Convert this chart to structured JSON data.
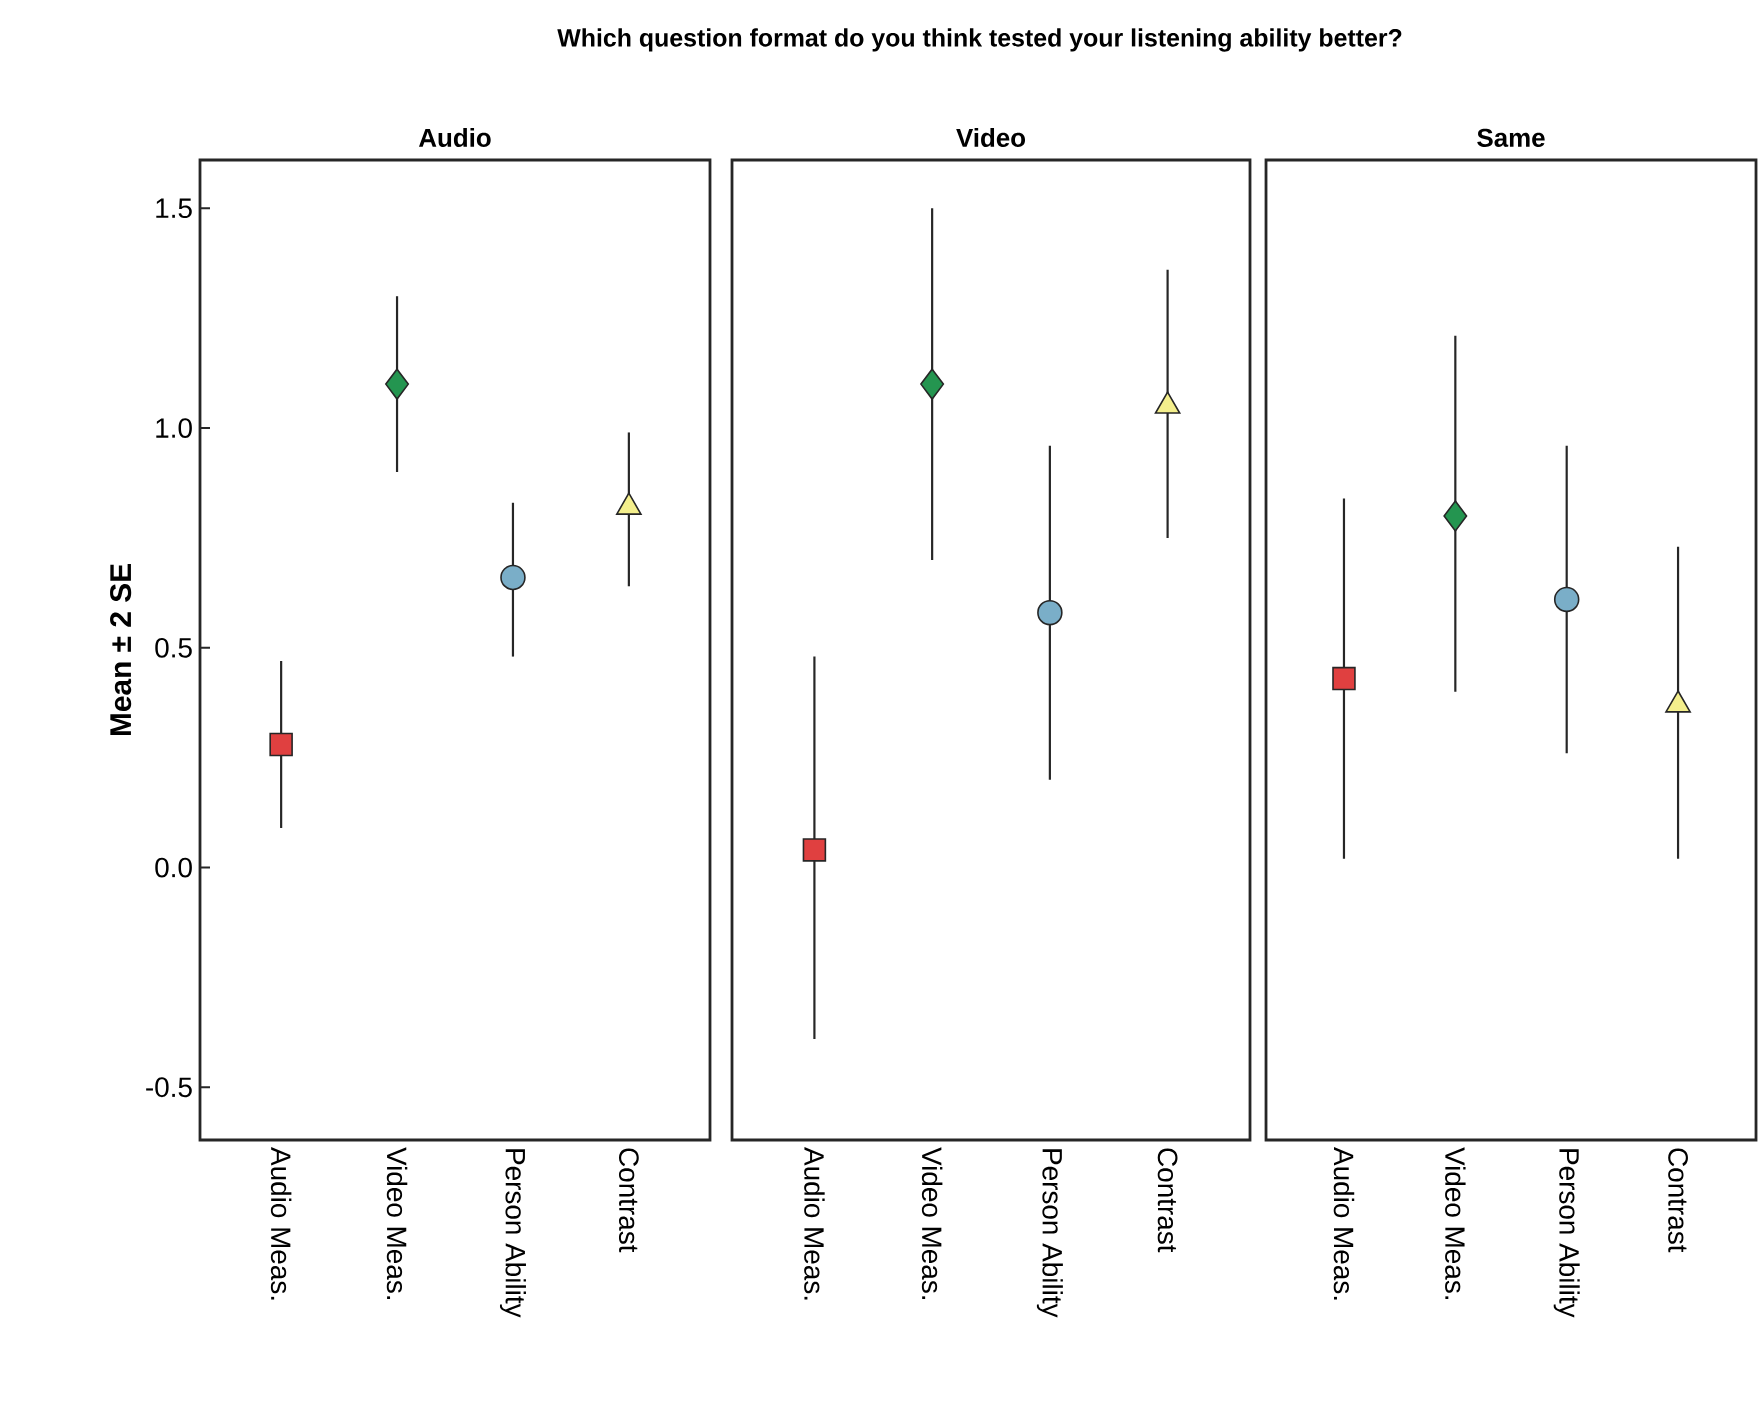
{
  "chart_data": [
    {
      "type": "scatter",
      "title": "Audio",
      "ylabel": "Mean ± 2 SE",
      "annotations": [
        "Which question format do you think tested your listening ability better?"
      ],
      "categories": [
        "Audio Meas.",
        "Video Meas.",
        "Person Ability",
        "Contrast"
      ],
      "series": [
        {
          "color": "#e04040",
          "marker": "square",
          "values": [
            0.28,
            null,
            null,
            null
          ],
          "errors": [
            [
              0.09,
              0.47
            ],
            null,
            null,
            null
          ]
        },
        {
          "color": "#249550",
          "marker": "diamond",
          "values": [
            null,
            1.1,
            null,
            null
          ],
          "errors": [
            null,
            [
              0.9,
              1.3
            ],
            null,
            null
          ]
        },
        {
          "color": "#7aaec8",
          "marker": "circle",
          "values": [
            null,
            null,
            0.66,
            null
          ],
          "errors": [
            null,
            null,
            [
              0.48,
              0.83
            ],
            null
          ]
        },
        {
          "color": "#f4ef8c",
          "marker": "triangle",
          "values": [
            null,
            null,
            null,
            0.82
          ],
          "errors": [
            null,
            null,
            null,
            [
              0.64,
              0.99
            ]
          ]
        }
      ],
      "ylim": [
        -0.62,
        1.61
      ],
      "yticks": [
        {
          "value": -0.5,
          "label": "-0.5"
        },
        {
          "value": 0,
          "label": "0.0"
        },
        {
          "value": 0.5,
          "label": "0.5"
        },
        {
          "value": 1,
          "label": "1.0"
        },
        {
          "value": 1.5,
          "label": "1.5"
        }
      ]
    },
    {
      "type": "scatter",
      "title": "Video",
      "tick_labels": "x",
      "categories": [
        "Audio Meas.",
        "Video Meas.",
        "Person Ability",
        "Contrast"
      ],
      "series": [
        {
          "color": "#e04040",
          "marker": "square",
          "values": [
            0.04,
            null,
            null,
            null
          ],
          "errors": [
            [
              -0.39,
              0.48
            ],
            null,
            null,
            null
          ]
        },
        {
          "color": "#249550",
          "marker": "diamond",
          "values": [
            null,
            1.1,
            null,
            null
          ],
          "errors": [
            null,
            [
              0.7,
              1.5
            ],
            null,
            null
          ]
        },
        {
          "color": "#7aaec8",
          "marker": "circle",
          "values": [
            null,
            null,
            0.58,
            null
          ],
          "errors": [
            null,
            null,
            [
              0.2,
              0.96
            ],
            null
          ]
        },
        {
          "color": "#f4ef8c",
          "marker": "triangle",
          "values": [
            null,
            null,
            null,
            1.05
          ],
          "errors": [
            null,
            null,
            null,
            [
              0.75,
              1.36
            ]
          ]
        }
      ],
      "ylim": [
        -0.62,
        1.61
      ]
    },
    {
      "type": "scatter",
      "title": "Same",
      "tick_labels": "x",
      "categories": [
        "Audio Meas.",
        "Video Meas.",
        "Person Ability",
        "Contrast"
      ],
      "series": [
        {
          "color": "#e04040",
          "marker": "square",
          "values": [
            0.43,
            null,
            null,
            null
          ],
          "errors": [
            [
              0.02,
              0.84
            ],
            null,
            null,
            null
          ]
        },
        {
          "color": "#249550",
          "marker": "diamond",
          "values": [
            null,
            0.8,
            null,
            null
          ],
          "errors": [
            null,
            [
              0.4,
              1.21
            ],
            null,
            null
          ]
        },
        {
          "color": "#7aaec8",
          "marker": "circle",
          "values": [
            null,
            null,
            0.61,
            null
          ],
          "errors": [
            null,
            null,
            [
              0.26,
              0.96
            ],
            null
          ]
        },
        {
          "color": "#f4ef8c",
          "marker": "triangle",
          "values": [
            null,
            null,
            null,
            0.37
          ],
          "errors": [
            null,
            null,
            null,
            [
              0.02,
              0.73
            ]
          ]
        }
      ],
      "ylim": [
        -0.62,
        1.61
      ]
    }
  ]
}
